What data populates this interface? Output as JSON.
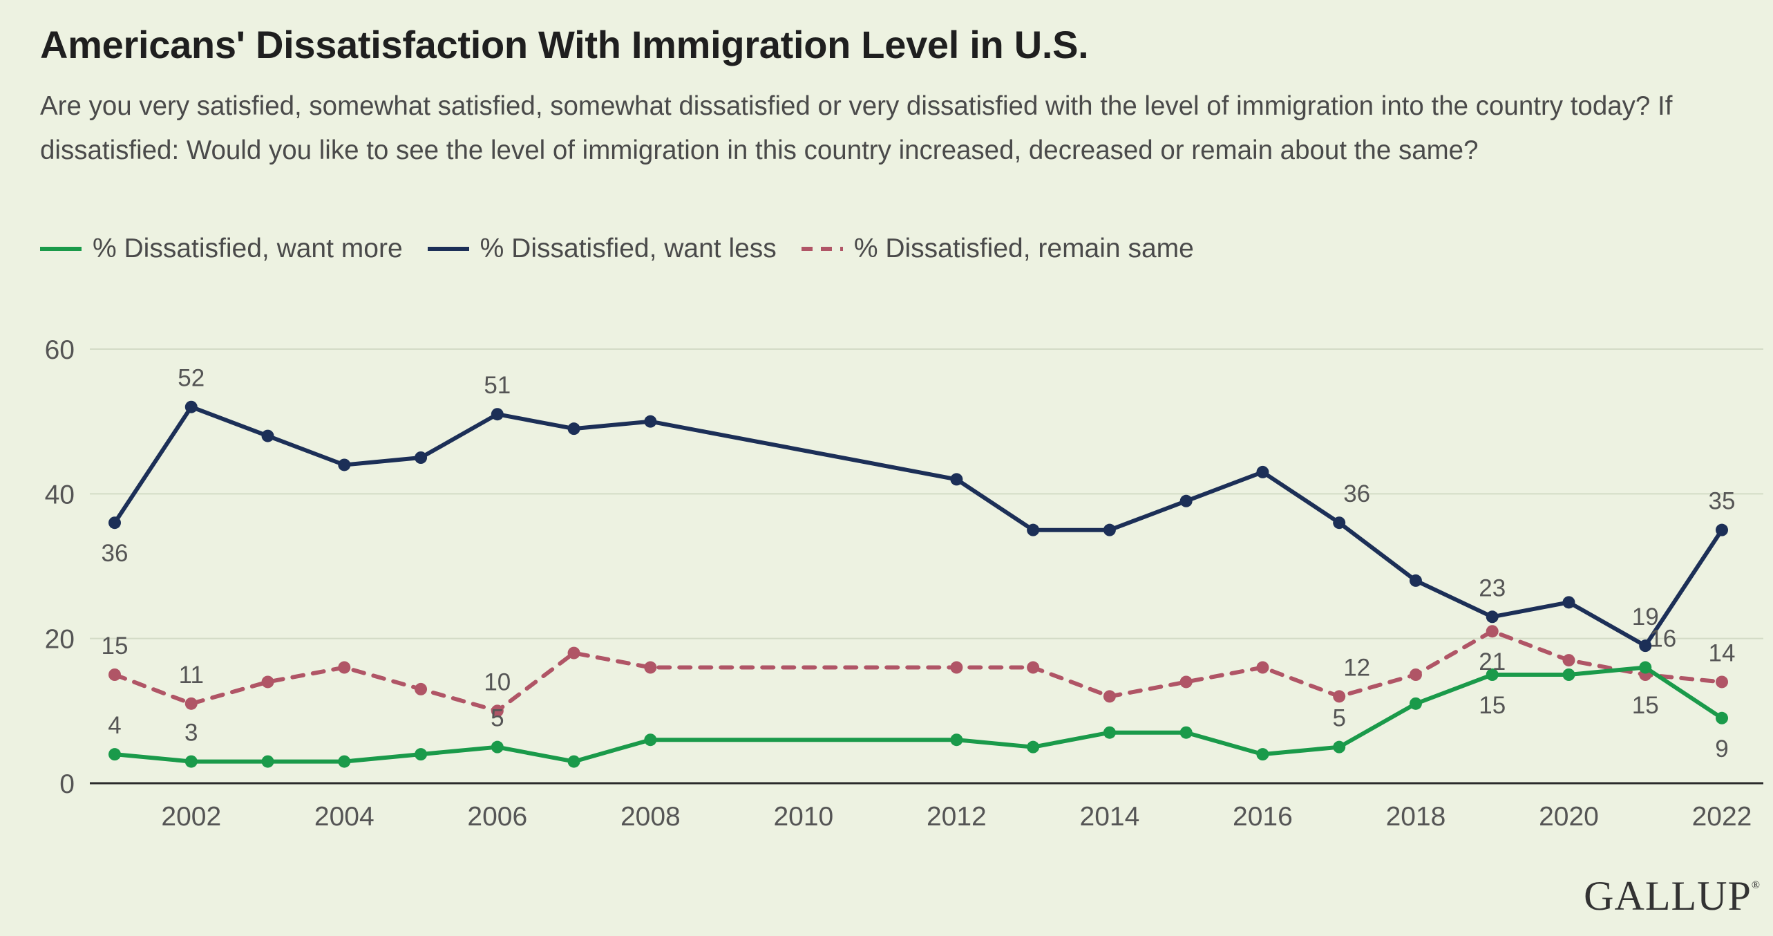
{
  "title": "Americans' Dissatisfaction With Immigration Level in U.S.",
  "subtitle": "Are you very satisfied, somewhat satisfied, somewhat dissatisfied or very dissatisfied with the level of immigration into the country today? If dissatisfied: Would you like to see the level of immigration in this country increased, decreased or remain about the same?",
  "logo": "GALLUP",
  "logo_mark": "®",
  "chart_data": {
    "type": "line",
    "title": "Americans' Dissatisfaction With Immigration Level in U.S.",
    "xlabel": "",
    "ylabel": "",
    "xlim": [
      2001,
      2022
    ],
    "ylim": [
      0,
      60
    ],
    "x_ticks": [
      2002,
      2004,
      2006,
      2008,
      2010,
      2012,
      2014,
      2016,
      2018,
      2020,
      2022
    ],
    "y_ticks": [
      0,
      20,
      40,
      60
    ],
    "grid": true,
    "legend_position": "top-left",
    "series": [
      {
        "name": "% Dissatisfied, want more",
        "color": "#1a9a4a",
        "dashed": false,
        "x": [
          2001,
          2002,
          2003,
          2004,
          2005,
          2006,
          2007,
          2008,
          2012,
          2013,
          2014,
          2015,
          2016,
          2017,
          2018,
          2019,
          2020,
          2021,
          2022
        ],
        "values": [
          4,
          3,
          3,
          3,
          4,
          5,
          3,
          6,
          6,
          5,
          7,
          7,
          4,
          5,
          11,
          15,
          15,
          16,
          9
        ]
      },
      {
        "name": "% Dissatisfied, want less",
        "color": "#1c2f57",
        "dashed": false,
        "x": [
          2001,
          2002,
          2003,
          2004,
          2005,
          2006,
          2007,
          2008,
          2012,
          2013,
          2014,
          2015,
          2016,
          2017,
          2018,
          2019,
          2020,
          2021,
          2022
        ],
        "values": [
          36,
          52,
          48,
          44,
          45,
          51,
          49,
          50,
          42,
          35,
          35,
          39,
          43,
          36,
          28,
          23,
          25,
          19,
          35
        ]
      },
      {
        "name": "% Dissatisfied, remain same",
        "color": "#b05566",
        "dashed": true,
        "x": [
          2001,
          2002,
          2003,
          2004,
          2005,
          2006,
          2007,
          2008,
          2012,
          2013,
          2014,
          2015,
          2016,
          2017,
          2018,
          2019,
          2020,
          2021,
          2022
        ],
        "values": [
          15,
          11,
          14,
          16,
          13,
          10,
          18,
          16,
          16,
          16,
          12,
          14,
          16,
          12,
          15,
          21,
          17,
          15,
          14
        ]
      }
    ],
    "annotations": [
      {
        "series": 1,
        "x": 2001,
        "text": "36",
        "pos": "below"
      },
      {
        "series": 1,
        "x": 2002,
        "text": "52",
        "pos": "above"
      },
      {
        "series": 1,
        "x": 2006,
        "text": "51",
        "pos": "above"
      },
      {
        "series": 1,
        "x": 2017,
        "text": "36",
        "pos": "above-right"
      },
      {
        "series": 1,
        "x": 2019,
        "text": "23",
        "pos": "above"
      },
      {
        "series": 1,
        "x": 2021,
        "text": "19",
        "pos": "above"
      },
      {
        "series": 1,
        "x": 2022,
        "text": "35",
        "pos": "above"
      },
      {
        "series": 2,
        "x": 2001,
        "text": "15",
        "pos": "above"
      },
      {
        "series": 2,
        "x": 2002,
        "text": "11",
        "pos": "above"
      },
      {
        "series": 2,
        "x": 2006,
        "text": "10",
        "pos": "above"
      },
      {
        "series": 2,
        "x": 2017,
        "text": "12",
        "pos": "above-right"
      },
      {
        "series": 2,
        "x": 2019,
        "text": "21",
        "pos": "below"
      },
      {
        "series": 2,
        "x": 2021,
        "text": "15",
        "pos": "below"
      },
      {
        "series": 2,
        "x": 2022,
        "text": "14",
        "pos": "above"
      },
      {
        "series": 0,
        "x": 2001,
        "text": "4",
        "pos": "above"
      },
      {
        "series": 0,
        "x": 2002,
        "text": "3",
        "pos": "above"
      },
      {
        "series": 0,
        "x": 2006,
        "text": "5",
        "pos": "above"
      },
      {
        "series": 0,
        "x": 2017,
        "text": "5",
        "pos": "above"
      },
      {
        "series": 0,
        "x": 2019,
        "text": "15",
        "pos": "below"
      },
      {
        "series": 0,
        "x": 2021,
        "text": "16",
        "pos": "above-right"
      },
      {
        "series": 0,
        "x": 2022,
        "text": "9",
        "pos": "below"
      }
    ]
  }
}
